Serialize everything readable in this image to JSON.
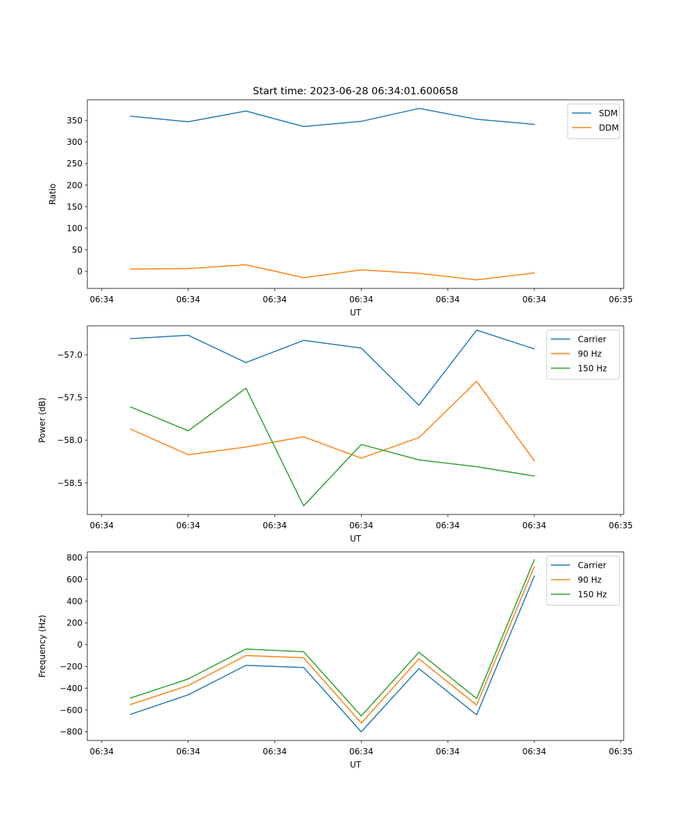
{
  "figure": {
    "title": "Start time: 2023-06-28 06:34:01.600658"
  },
  "colors": {
    "blue": "#1f77b4",
    "orange": "#ff7f0e",
    "green": "#2ca02c"
  },
  "chart_data": [
    {
      "type": "line",
      "title": "Start time: 2023-06-28 06:34:01.600658",
      "xlabel": "UT",
      "ylabel": "Ratio",
      "x": [
        0.5,
        1.5,
        2.5,
        3.5,
        4.5,
        5.5,
        6.5,
        7.5
      ],
      "xlim": [
        -0.25,
        9.05
      ],
      "xticks": [
        0,
        1.5,
        3,
        4.5,
        6,
        7.5,
        9
      ],
      "xtick_labels": [
        "06:34",
        "06:34",
        "06:34",
        "06:34",
        "06:34",
        "06:34",
        "06:35"
      ],
      "ylim": [
        -40,
        398
      ],
      "yticks": [
        0,
        50,
        100,
        150,
        200,
        250,
        300,
        350
      ],
      "ytick_labels": [
        "0",
        "50",
        "100",
        "150",
        "200",
        "250",
        "300",
        "350"
      ],
      "legend": "top-right",
      "grid": false,
      "series": [
        {
          "name": "SDM",
          "color": "#1f77b4",
          "values": [
            360,
            347,
            372,
            336,
            348,
            378,
            353,
            341
          ]
        },
        {
          "name": "DDM",
          "color": "#ff7f0e",
          "values": [
            5,
            6,
            15,
            -15,
            3,
            -5,
            -20,
            -4
          ]
        }
      ]
    },
    {
      "type": "line",
      "title": "",
      "xlabel": "UT",
      "ylabel": "Power (dB)",
      "x": [
        0.5,
        1.5,
        2.5,
        3.5,
        4.5,
        5.5,
        6.5,
        7.5
      ],
      "xlim": [
        -0.25,
        9.05
      ],
      "xticks": [
        0,
        1.5,
        3,
        4.5,
        6,
        7.5,
        9
      ],
      "xtick_labels": [
        "06:34",
        "06:34",
        "06:34",
        "06:34",
        "06:34",
        "06:34",
        "06:35"
      ],
      "ylim": [
        -58.87,
        -56.66
      ],
      "yticks": [
        -58.5,
        -58.0,
        -57.5,
        -57.0
      ],
      "ytick_labels": [
        "−58.5",
        "−58.0",
        "−57.5",
        "−57.0"
      ],
      "legend": "top-right",
      "grid": false,
      "series": [
        {
          "name": "Carrier",
          "color": "#1f77b4",
          "values": [
            -56.81,
            -56.77,
            -57.09,
            -56.83,
            -56.92,
            -57.59,
            -56.71,
            -56.93
          ]
        },
        {
          "name": "90 Hz",
          "color": "#ff7f0e",
          "values": [
            -57.87,
            -58.17,
            -58.08,
            -57.96,
            -58.21,
            -57.97,
            -57.31,
            -58.24
          ]
        },
        {
          "name": "150 Hz",
          "color": "#2ca02c",
          "values": [
            -57.61,
            -57.89,
            -57.39,
            -58.77,
            -58.05,
            -58.23,
            -58.31,
            -58.42
          ]
        }
      ]
    },
    {
      "type": "line",
      "title": "",
      "xlabel": "UT",
      "ylabel": "Frequency (Hz)",
      "x": [
        0.5,
        1.5,
        2.5,
        3.5,
        4.5,
        5.5,
        6.5,
        7.5
      ],
      "xlim": [
        -0.25,
        9.05
      ],
      "xticks": [
        0,
        1.5,
        3,
        4.5,
        6,
        7.5,
        9
      ],
      "xtick_labels": [
        "06:34",
        "06:34",
        "06:34",
        "06:34",
        "06:34",
        "06:34",
        "06:35"
      ],
      "ylim": [
        -880,
        852
      ],
      "yticks": [
        -800,
        -600,
        -400,
        -200,
        0,
        200,
        400,
        600,
        800
      ],
      "ytick_labels": [
        "−800",
        "−600",
        "−400",
        "−200",
        "0",
        "200",
        "400",
        "600",
        "800"
      ],
      "legend": "top-right",
      "grid": false,
      "series": [
        {
          "name": "Carrier",
          "color": "#1f77b4",
          "values": [
            -640,
            -460,
            -190,
            -210,
            -800,
            -220,
            -645,
            630
          ]
        },
        {
          "name": "90 Hz",
          "color": "#ff7f0e",
          "values": [
            -550,
            -375,
            -100,
            -120,
            -720,
            -130,
            -555,
            715
          ]
        },
        {
          "name": "150 Hz",
          "color": "#2ca02c",
          "values": [
            -490,
            -315,
            -40,
            -65,
            -655,
            -70,
            -495,
            780
          ]
        }
      ]
    }
  ]
}
